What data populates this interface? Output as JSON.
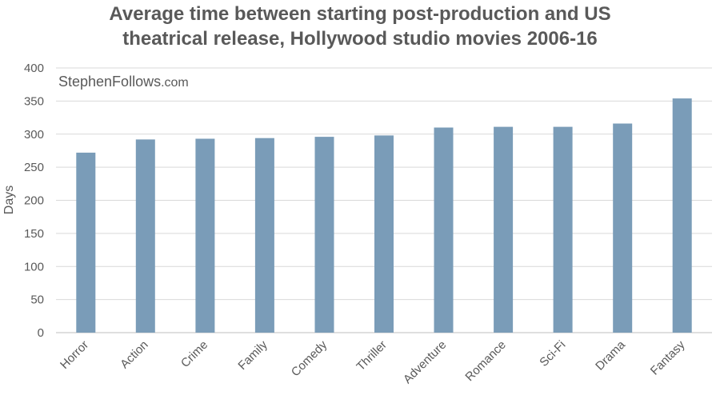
{
  "title": {
    "line1": "Average time between starting post-production and US",
    "line2": "theatrical release, Hollywood studio movies 2006-16"
  },
  "watermark": {
    "brand": "StephenFollows",
    "suffix": ".com"
  },
  "colors": {
    "bar": "#7a9cb8",
    "grid": "#d9d9d9",
    "text": "#595959",
    "watermark": "#b3b3b3"
  },
  "chart_data": {
    "type": "bar",
    "title": "Average time between starting post-production and US theatrical release, Hollywood studio movies 2006-16",
    "ylabel": "Days",
    "xlabel": "",
    "ylim": [
      0,
      400
    ],
    "yticks": [
      0,
      50,
      100,
      150,
      200,
      250,
      300,
      350,
      400
    ],
    "grid": true,
    "categories": [
      "Horror",
      "Action",
      "Crime",
      "Family",
      "Comedy",
      "Thriller",
      "Adventure",
      "Romance",
      "Sci-Fi",
      "Drama",
      "Fantasy"
    ],
    "values": [
      272,
      292,
      293,
      294,
      296,
      298,
      310,
      311,
      311,
      316,
      354
    ]
  }
}
